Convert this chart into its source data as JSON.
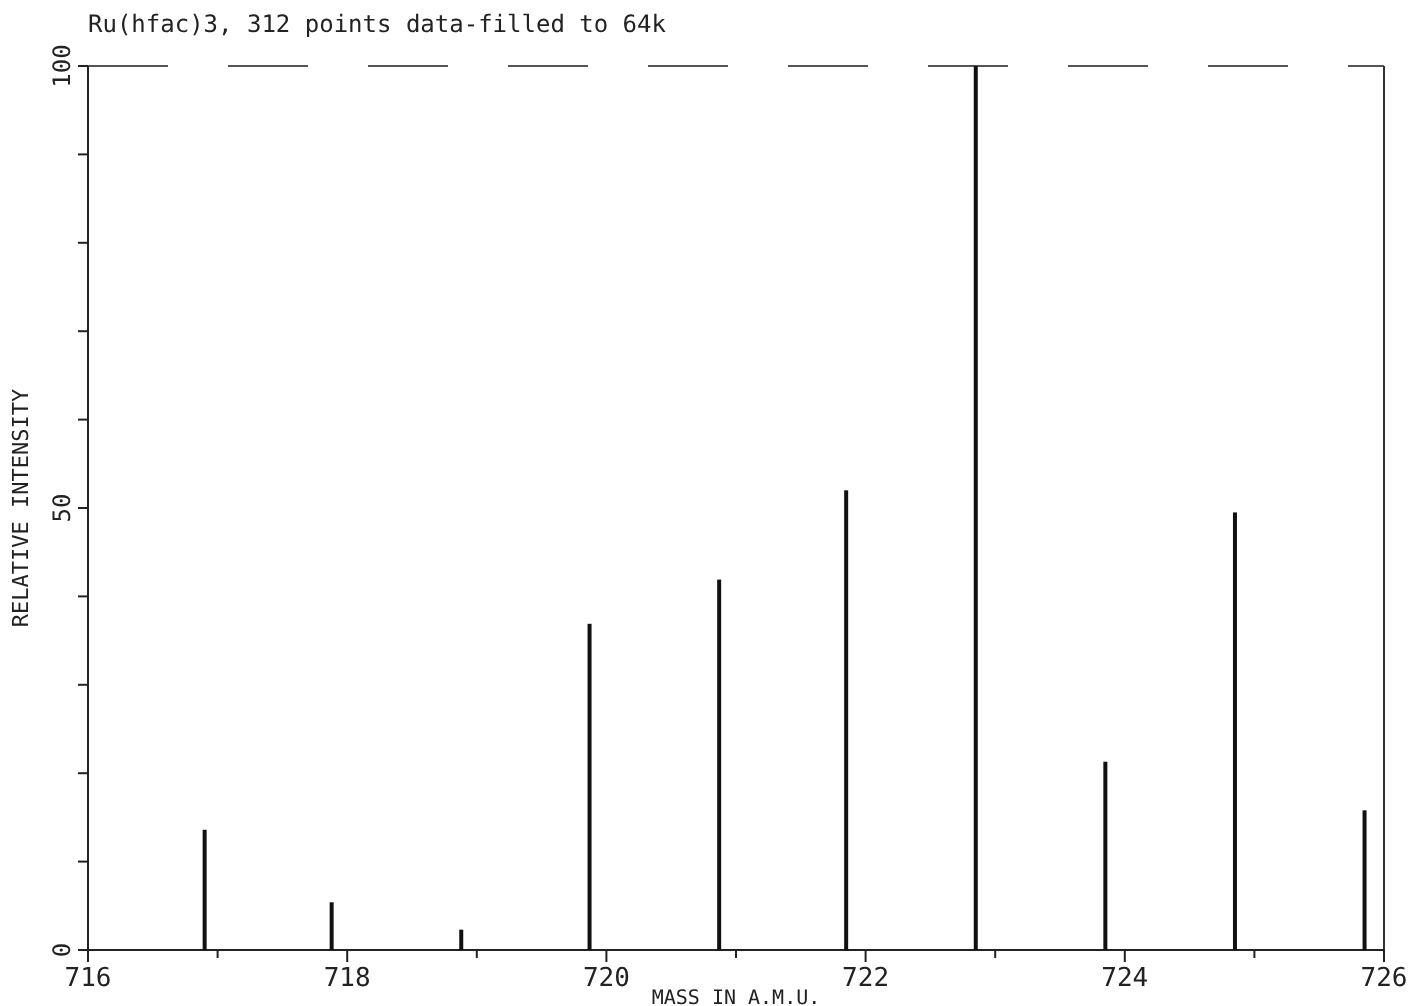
{
  "chart_data": {
    "type": "bar",
    "title": "Ru(hfac)3, 312 points data-filled to 64k",
    "xlabel": "MASS IN A.M.U.",
    "ylabel": "RELATIVE INTENSITY",
    "x": [
      716.9,
      717.88,
      718.88,
      719.87,
      720.87,
      721.85,
      722.85,
      723.85,
      724.85,
      725.85
    ],
    "values": [
      13.6,
      5.4,
      2.3,
      36.9,
      41.9,
      52,
      100,
      21.3,
      49.5,
      15.8
    ],
    "color": "#111111",
    "xlim": [
      716,
      726
    ],
    "xticks": [
      716,
      {
        "value": 717,
        "label": null
      },
      718,
      {
        "value": 719,
        "label": null
      },
      720,
      {
        "value": 721,
        "label": null
      },
      722,
      {
        "value": 723,
        "label": null
      },
      724,
      {
        "value": 725,
        "label": null
      },
      726
    ],
    "ylim": [
      0,
      100
    ],
    "yticks": [
      0,
      {
        "value": 10,
        "label": null
      },
      {
        "value": 20,
        "label": null
      },
      {
        "value": 30,
        "label": null
      },
      {
        "value": 40,
        "label": null
      },
      50,
      {
        "value": 60,
        "label": null
      },
      {
        "value": 70,
        "label": null
      },
      {
        "value": 80,
        "label": null
      },
      {
        "value": 90,
        "label": null
      },
      100
    ],
    "grid": false
  }
}
